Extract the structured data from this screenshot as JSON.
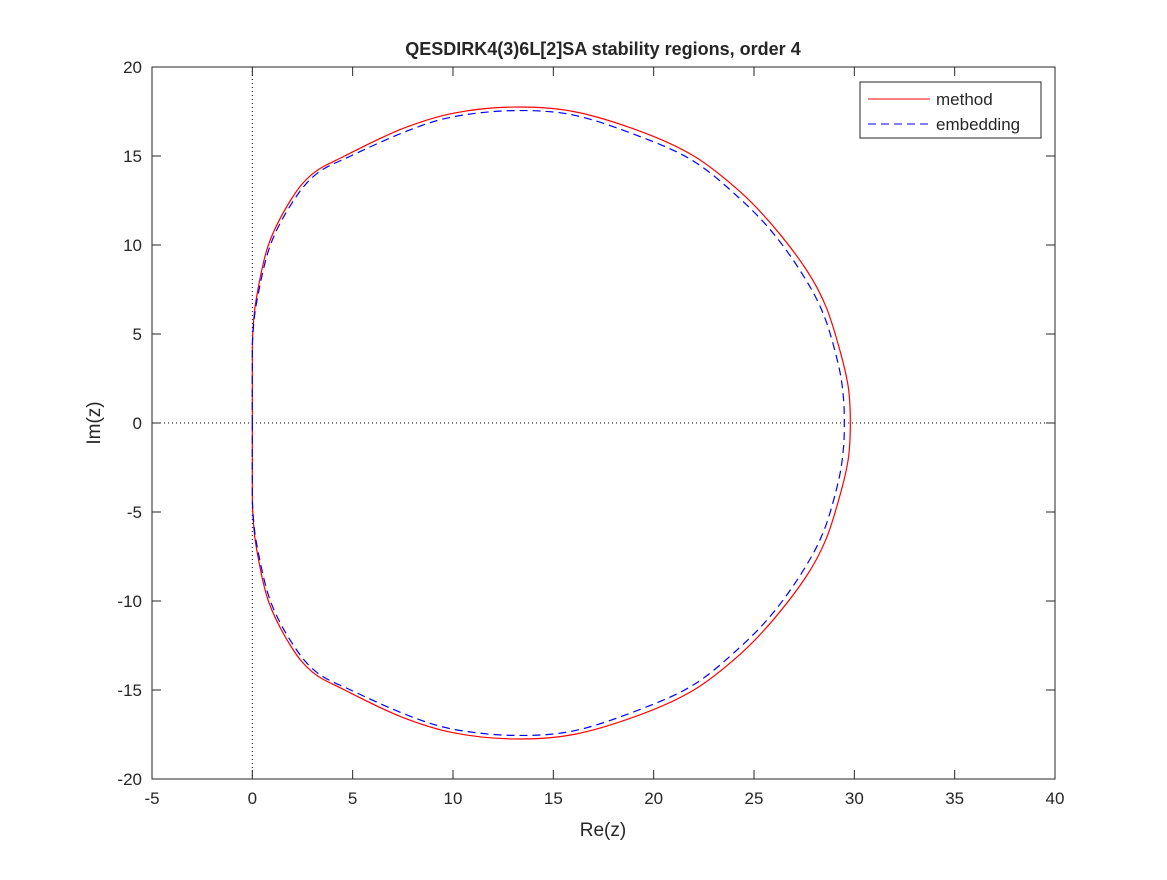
{
  "chart_data": {
    "type": "line",
    "title": "QESDIRK4(3)6L[2]SA stability regions, order 4",
    "xlabel": "Re(z)",
    "ylabel": "Im(z)",
    "xlim": [
      -5,
      40
    ],
    "ylim": [
      -20,
      20
    ],
    "xticks": [
      -5,
      0,
      5,
      10,
      15,
      20,
      25,
      30,
      35,
      40
    ],
    "yticks": [
      -20,
      -15,
      -10,
      -5,
      0,
      5,
      10,
      15,
      20
    ],
    "grid": false,
    "legend_position": "top-right",
    "reference_lines": {
      "x": 0,
      "y": 0,
      "style": "dotted",
      "color": "#000000"
    },
    "series": [
      {
        "name": "method",
        "color": "#ff0000",
        "style": "solid",
        "x": [
          0,
          0,
          0.02,
          0.2,
          0.8,
          1.9,
          3,
          4.6,
          7.4,
          10,
          13,
          16,
          19.3,
          22,
          24.3,
          26,
          27.65,
          28.6,
          29.3,
          29.7,
          29.8,
          29.7,
          29.3,
          28.6,
          27.65,
          26,
          24.3,
          22,
          19.3,
          16,
          13,
          10,
          7.4,
          4.6,
          3,
          1.9,
          0.8,
          0.2,
          0.02,
          0,
          0
        ],
        "y": [
          0,
          3,
          5,
          7,
          10,
          12.5,
          14,
          15,
          16.5,
          17.4,
          17.75,
          17.5,
          16.4,
          15,
          13,
          11,
          8.54,
          6.5,
          4,
          2,
          0,
          -2,
          -4,
          -6.5,
          -8.54,
          -11,
          -13,
          -15,
          -16.4,
          -17.5,
          -17.75,
          -17.4,
          -16.5,
          -15,
          -14,
          -12.5,
          -10,
          -7,
          -5,
          -3,
          0
        ]
      },
      {
        "name": "embedding",
        "color": "#0000ff",
        "style": "dashed",
        "x": [
          0,
          0,
          0.03,
          0.25,
          0.9,
          2,
          3.2,
          4.9,
          7.7,
          10,
          13,
          16,
          19.3,
          22,
          24.3,
          26,
          27.5,
          28.5,
          29.2,
          29.45,
          29.5,
          29.45,
          29.2,
          28.5,
          27.5,
          26,
          24.3,
          22,
          19.3,
          16,
          13,
          10,
          7.7,
          4.9,
          3.2,
          2,
          0.9,
          0.25,
          0.03,
          0,
          0
        ],
        "y": [
          0,
          3,
          5,
          7,
          10,
          12.4,
          14,
          15,
          16.4,
          17.2,
          17.55,
          17.3,
          16.1,
          14.7,
          12.6,
          10.6,
          8.2,
          6,
          3.3,
          1.5,
          0,
          -1.5,
          -3.3,
          -6,
          -8.2,
          -10.6,
          -12.6,
          -14.7,
          -16.1,
          -17.3,
          -17.55,
          -17.2,
          -16.4,
          -15,
          -14,
          -12.4,
          -10,
          -7,
          -5,
          -3,
          0
        ]
      }
    ]
  }
}
